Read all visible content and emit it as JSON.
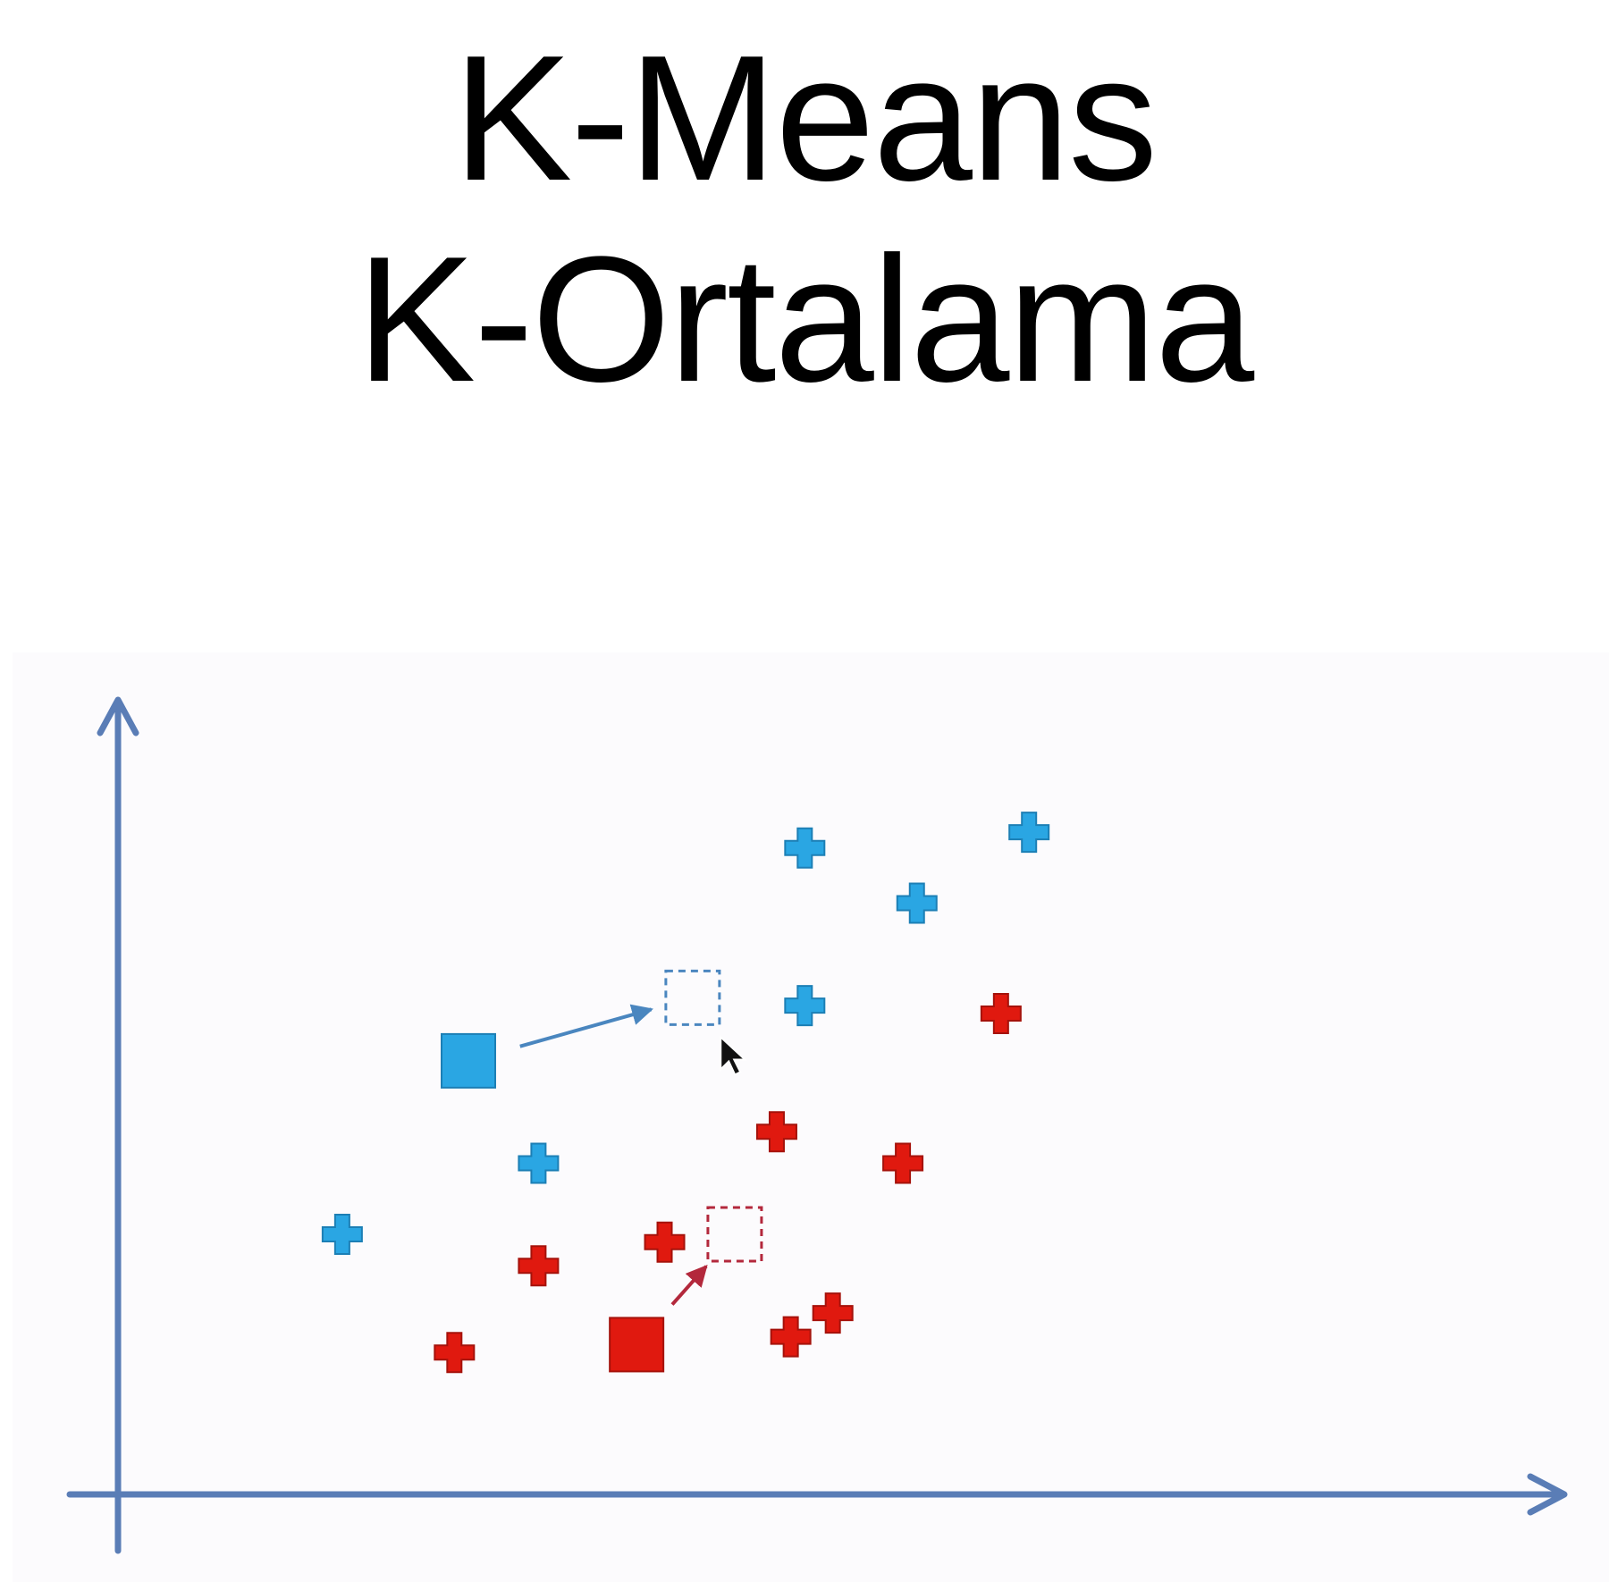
{
  "title": {
    "line1": "K-Means",
    "line2": "K-Ortalama"
  },
  "colors": {
    "axis": "#5a7db6",
    "cluster_blue": "#2aa6e3",
    "cluster_blue_stroke": "#1c7fb5",
    "cluster_red": "#e0190f",
    "cluster_red_stroke": "#a5120b",
    "new_centroid_blue": "#4a86bf",
    "new_centroid_red": "#b3283c",
    "cursor": "#111111"
  },
  "icons": {
    "data_point": "plus-icon",
    "centroid": "square-icon",
    "new_centroid": "dashed-square-icon",
    "pointer": "mouse-pointer-icon"
  },
  "chart_data": {
    "type": "scatter",
    "title": "K-Means K-Ortalama",
    "xlabel": "",
    "ylabel": "",
    "grid": false,
    "xlim": [
      0,
      100
    ],
    "ylim": [
      0,
      100
    ],
    "series": [
      {
        "cluster": "blue",
        "x": [
          16,
          30,
          49,
          49,
          57,
          65
        ],
        "y": [
          33,
          42,
          62,
          82,
          75,
          84
        ]
      },
      {
        "cluster": "red",
        "x": [
          24,
          30,
          39,
          47,
          48,
          51,
          56,
          63
        ],
        "y": [
          18,
          29,
          32,
          46,
          20,
          23,
          42,
          61
        ]
      }
    ],
    "centroids": [
      {
        "cluster": "blue",
        "from": [
          25,
          55
        ],
        "to": [
          41,
          63
        ]
      },
      {
        "cluster": "red",
        "from": [
          37,
          19
        ],
        "to": [
          44,
          33
        ]
      }
    ],
    "cursor": {
      "x": 43,
      "y": 58
    }
  }
}
